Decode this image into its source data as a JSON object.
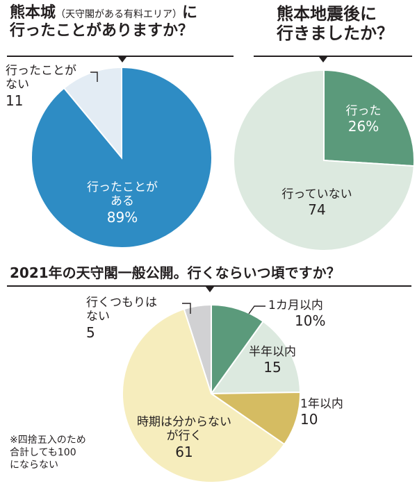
{
  "chart_data": [
    {
      "type": "pie",
      "title": "熊本城（天守閣がある有料エリア）に行ったことがありますか？",
      "title_main": "熊本城",
      "title_paren": "（天守閣がある有料エリア）",
      "title_tail": "に",
      "title_line2": "行ったことがありますか？",
      "slices": [
        {
          "label": "行ったことがある",
          "label_lines": [
            "行ったことが",
            "ある"
          ],
          "value": 89,
          "display": "89%",
          "color": "#2e8cc4"
        },
        {
          "label": "行ったことがない",
          "label_lines": [
            "行ったことが",
            "ない"
          ],
          "value": 11,
          "display": "11",
          "color": "#e3ecf4"
        }
      ]
    },
    {
      "type": "pie",
      "title": "熊本地震後に行きましたか？",
      "title_line1": "熊本地震後に",
      "title_line2": "行きましたか？",
      "slices": [
        {
          "label": "行った",
          "value": 26,
          "display": "26%",
          "color": "#5b9a7b"
        },
        {
          "label": "行っていない",
          "value": 74,
          "display": "74",
          "color": "#dce9df"
        }
      ]
    },
    {
      "type": "pie",
      "title": "2021年の天守閣一般公開。行くならいつ頃ですか？",
      "slices": [
        {
          "label": "1カ月以内",
          "value": 10,
          "display": "10%",
          "color": "#5b9a7b"
        },
        {
          "label": "半年以内",
          "value": 15,
          "display": "15",
          "color": "#dce9df"
        },
        {
          "label": "1年以内",
          "value": 10,
          "display": "10",
          "color": "#d5bc62"
        },
        {
          "label": "時期は分からないが行く",
          "label_lines": [
            "時期は分からない",
            "が行く"
          ],
          "value": 61,
          "display": "61",
          "color": "#f6edbd"
        },
        {
          "label": "行くつもりはない",
          "label_lines": [
            "行くつもりは",
            "ない"
          ],
          "value": 5,
          "display": "5",
          "color": "#d1d1d3"
        }
      ]
    }
  ],
  "note_lines": [
    "※四捨五入のため",
    "合計しても100",
    "にならない"
  ]
}
